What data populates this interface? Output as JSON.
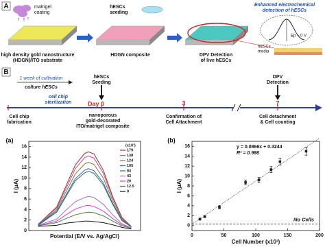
{
  "panel_a": {
    "label": "A",
    "matrigel": [
      "matrigel",
      "coating"
    ],
    "seeding": [
      "hESCs",
      "seeding"
    ],
    "substrate": [
      "high density gold nanostructure",
      "(HDGN)/ITO substrate"
    ],
    "composite": "HDGN composite",
    "dpv": [
      "DPV Detection",
      "of live hESCs"
    ],
    "enhanced": [
      "Enhanced electrochemical",
      "detection of hESCs"
    ],
    "peak": "Ep ~ 0 V",
    "media": [
      "hESCs",
      "media"
    ]
  },
  "panel_b": {
    "label": "B",
    "cultivation": "1 week of cultivation",
    "culture": "culture hESCs",
    "seeding": [
      "hESCs",
      "Seeding"
    ],
    "dpv": [
      "DPV",
      "Detection"
    ],
    "sterilization": [
      "cell chip",
      "sterilization"
    ],
    "day0": "Day 0",
    "day3": "3",
    "day7": "7",
    "fabrication": [
      "Cell chip",
      "fabrication"
    ],
    "composite": [
      "nanoporous",
      "gold-decorated",
      "ITO/matrigel composite"
    ],
    "attachment": [
      "Confirmation of",
      "Cell Attachment"
    ],
    "counting": [
      "Cell detachment",
      "& Cell counting"
    ]
  },
  "chart_data": [
    {
      "type": "line",
      "panel": "(a)",
      "xlabel": "Potential (E/V vs. Ag/AgCl)",
      "ylabel": "I (μA)",
      "legend_title": "(x10³)",
      "x": [
        -0.25,
        -0.15,
        -0.1,
        -0.05,
        0,
        0.02,
        0.05,
        0.1,
        0.15,
        0.2,
        0.25
      ],
      "xlim": [
        -0.3,
        0.3
      ],
      "ylim": [
        0,
        17
      ],
      "yticks": [
        0,
        2,
        4,
        6,
        8,
        10,
        12,
        14,
        16
      ],
      "series": [
        {
          "name": "179",
          "color": "#a02828",
          "values": [
            1.2,
            4.5,
            8.5,
            12.5,
            14.7,
            15.0,
            14.6,
            11.5,
            6.5,
            2.5,
            0.8
          ]
        },
        {
          "name": "138",
          "color": "#c8508c",
          "values": [
            1.2,
            4.3,
            8.0,
            11.8,
            13.9,
            14.2,
            13.8,
            10.9,
            6.2,
            2.4,
            0.8
          ]
        },
        {
          "name": "124",
          "color": "#7a7a3a",
          "values": [
            1.1,
            4.0,
            7.4,
            10.8,
            12.7,
            13.0,
            12.6,
            10.0,
            5.7,
            2.2,
            0.7
          ]
        },
        {
          "name": "105",
          "color": "#3a5ec0",
          "values": [
            1.1,
            3.7,
            6.8,
            9.9,
            11.5,
            11.8,
            11.4,
            9.1,
            5.2,
            2.0,
            0.7
          ]
        },
        {
          "name": "84",
          "color": "#1e7a58",
          "values": [
            1.0,
            3.5,
            6.5,
            9.5,
            11.0,
            11.3,
            10.9,
            8.7,
            5.0,
            1.9,
            0.7
          ]
        },
        {
          "name": "43",
          "color": "#9a6ad0",
          "values": [
            1.0,
            2.2,
            3.9,
            5.5,
            6.3,
            6.5,
            6.3,
            5.0,
            3.0,
            1.3,
            0.5
          ]
        },
        {
          "name": "20",
          "color": "#d83cd8",
          "values": [
            0.9,
            1.8,
            3.0,
            4.1,
            4.7,
            4.8,
            4.6,
            3.7,
            2.3,
            1.1,
            0.5
          ]
        },
        {
          "name": "12.5",
          "color": "#3a8a2a",
          "values": [
            0.9,
            1.5,
            2.3,
            3.0,
            3.4,
            3.5,
            3.4,
            2.8,
            1.8,
            0.9,
            0.4
          ]
        },
        {
          "name": "0",
          "color": "#111111",
          "values": [
            0.8,
            1.0,
            1.4,
            1.6,
            1.8,
            1.8,
            1.7,
            1.5,
            1.1,
            0.6,
            0.3
          ]
        }
      ]
    },
    {
      "type": "scatter",
      "panel": "(b)",
      "xlabel": "Cell Number (x10³)",
      "ylabel": "I (μA)",
      "x": [
        12.5,
        20,
        43,
        84,
        105,
        124,
        138,
        179
      ],
      "values": [
        1.3,
        1.8,
        3.7,
        8.7,
        9.2,
        11.3,
        12.9,
        15.0
      ],
      "errors": [
        0.2,
        0.2,
        0.3,
        0.5,
        0.5,
        0.6,
        0.7,
        0.8
      ],
      "color": "#222222",
      "xlim": [
        0,
        200
      ],
      "xticks": [
        0,
        50,
        100,
        150,
        200
      ],
      "ylim": [
        -1,
        17
      ],
      "yticks": [
        0,
        2,
        4,
        6,
        8,
        10,
        12,
        14,
        16
      ],
      "fit": {
        "slope": 0.0866,
        "intercept": 0.3244,
        "label": "y = 0.0866x + 0.3244"
      },
      "r2_label": "R² = 0.986",
      "baseline": {
        "value": 0.3,
        "label": "No Cells"
      }
    }
  ]
}
